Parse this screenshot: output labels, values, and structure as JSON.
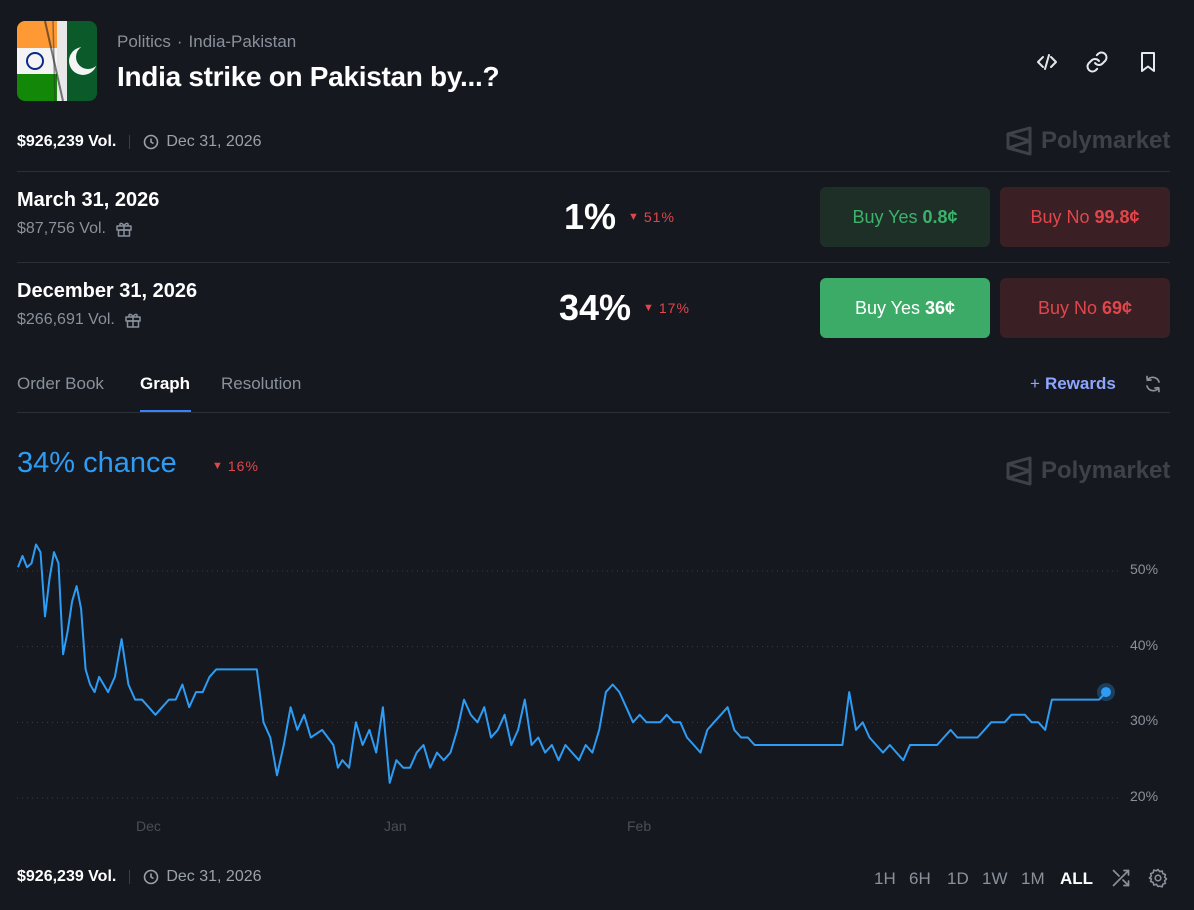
{
  "header": {
    "category": "Politics",
    "subcategory": "India-Pakistan",
    "title": "India strike on Pakistan by...?",
    "icons": [
      "embed-icon",
      "link-icon",
      "bookmark-icon"
    ]
  },
  "meta": {
    "volume": "$926,239 Vol.",
    "end_date": "Dec 31, 2026",
    "brand": "Polymarket"
  },
  "markets": [
    {
      "name": "March 31, 2026",
      "volume": "$87,756 Vol.",
      "percent": "1%",
      "change": "51%",
      "change_direction": "down",
      "yes_label": "Buy Yes",
      "yes_price": "0.8¢",
      "no_label": "Buy No",
      "no_price": "99.8¢"
    },
    {
      "name": "December 31, 2026",
      "volume": "$266,691 Vol.",
      "percent": "34%",
      "change": "17%",
      "change_direction": "down",
      "yes_label": "Buy Yes",
      "yes_price": "36¢",
      "no_label": "Buy No",
      "no_price": "69¢"
    }
  ],
  "tabs": [
    {
      "label": "Order Book",
      "active": false
    },
    {
      "label": "Graph",
      "active": true
    },
    {
      "label": "Resolution",
      "active": false
    }
  ],
  "rewards": {
    "plus": "+",
    "label": "Rewards"
  },
  "chart": {
    "chance": "34% chance",
    "change": "16%",
    "brand": "Polymarket",
    "ranges": [
      "1H",
      "6H",
      "1D",
      "1W",
      "1M",
      "ALL"
    ],
    "active_range": "ALL"
  },
  "footer": {
    "volume": "$926,239 Vol.",
    "end_date": "Dec 31, 2026"
  },
  "colors": {
    "line": "#2d9cf5",
    "positive": "#3db26b",
    "negative": "#e0474c",
    "background": "#15181e"
  },
  "chart_data": {
    "type": "line",
    "title": "",
    "xlabel": "",
    "ylabel": "",
    "ylim": [
      17,
      54
    ],
    "y_ticks": [
      50,
      40,
      30,
      20
    ],
    "y_tick_labels": [
      "50%",
      "40%",
      "30%",
      "20%"
    ],
    "x_ticks": [
      "Dec",
      "Jan",
      "Feb"
    ],
    "x_tick_positions": [
      6.5,
      17.5,
      28.5
    ],
    "grid": true,
    "series": [
      {
        "x": [
          0,
          0.2,
          0.4,
          0.6,
          0.8,
          1,
          1.2,
          1.4,
          1.6,
          1.8,
          2,
          2.2,
          2.4,
          2.6,
          2.8,
          3,
          3.2,
          3.4,
          3.6,
          3.8,
          4,
          4.3,
          4.6,
          4.9,
          5.2,
          5.5,
          5.8,
          6.1,
          6.4,
          6.7,
          7,
          7.3,
          7.6,
          7.9,
          8.2,
          8.5,
          8.8,
          9.1,
          9.4,
          9.7,
          10,
          10.3,
          10.6,
          10.9,
          11.2,
          11.5,
          11.8,
          12.1,
          12.4,
          12.7,
          13,
          13.5,
          14,
          14.2,
          14.4,
          14.7,
          15,
          15.3,
          15.6,
          15.9,
          16.2,
          16.5,
          16.8,
          17.1,
          17.4,
          17.7,
          18,
          18.3,
          18.6,
          18.9,
          19.2,
          19.5,
          19.8,
          20.1,
          20.4,
          20.7,
          21,
          21.3,
          21.6,
          21.9,
          22.2,
          22.5,
          22.8,
          23.1,
          23.4,
          23.7,
          24,
          24.3,
          24.6,
          24.9,
          25.2,
          25.5,
          25.8,
          26.1,
          26.4,
          26.7,
          27,
          27.3,
          27.6,
          27.9,
          28.2,
          28.5,
          28.8,
          29.1,
          29.4,
          29.7,
          30,
          30.3,
          30.6,
          30.9,
          31.2,
          31.5,
          31.8,
          32.1,
          32.4,
          32.7,
          33,
          33.3,
          33.6,
          33.9,
          34.2,
          34.5,
          34.8,
          35.1,
          35.4,
          35.7,
          36,
          36.3,
          36.6,
          36.9,
          37.2,
          37.5,
          37.8,
          38.1,
          38.4,
          38.7,
          39,
          39.3,
          39.6,
          39.9,
          40.2,
          40.5,
          40.8,
          41.1,
          41.4,
          41.7,
          42,
          42.3,
          42.6,
          42.9,
          43.2,
          43.5,
          43.8,
          44.1,
          44.4,
          44.7,
          45,
          45.3,
          45.6,
          45.9,
          46.2,
          46.5,
          46.8,
          47.1,
          47.4,
          47.7,
          48,
          48.3
        ],
        "y": [
          50.5,
          52,
          50.5,
          51,
          53.5,
          52.5,
          44,
          49,
          52.5,
          51,
          39,
          42,
          46,
          48,
          45,
          37,
          35,
          34,
          36,
          35,
          34,
          36,
          41,
          35,
          33,
          33,
          32,
          31,
          32,
          33,
          33,
          35,
          32,
          34,
          34,
          36,
          37,
          37,
          37,
          37,
          37,
          37,
          37,
          30,
          28,
          23,
          27,
          32,
          29,
          31,
          28,
          29,
          27,
          24,
          25,
          24,
          30,
          27,
          29,
          26,
          32,
          22,
          25,
          24,
          24,
          26,
          27,
          24,
          26,
          25,
          26,
          29,
          33,
          31,
          30,
          32,
          28,
          29,
          31,
          27,
          29,
          33,
          27,
          28,
          26,
          27,
          25,
          27,
          26,
          25,
          27,
          26,
          29,
          34,
          35,
          34,
          32,
          30,
          31,
          30,
          30,
          30,
          31,
          30,
          30,
          28,
          27,
          26,
          29,
          30,
          31,
          32,
          29,
          28,
          28,
          27,
          27,
          27,
          27,
          27,
          27,
          27,
          27,
          27,
          27,
          27,
          27,
          27,
          27,
          34,
          29,
          30,
          28,
          27,
          26,
          27,
          26,
          25,
          27,
          27,
          27,
          27,
          27,
          28,
          29,
          28,
          28,
          28,
          28,
          29,
          30,
          30,
          30,
          31,
          31,
          31,
          30,
          30,
          29,
          33,
          33,
          33,
          33,
          33,
          33,
          33,
          33,
          34
        ]
      }
    ],
    "last_value": 34
  }
}
